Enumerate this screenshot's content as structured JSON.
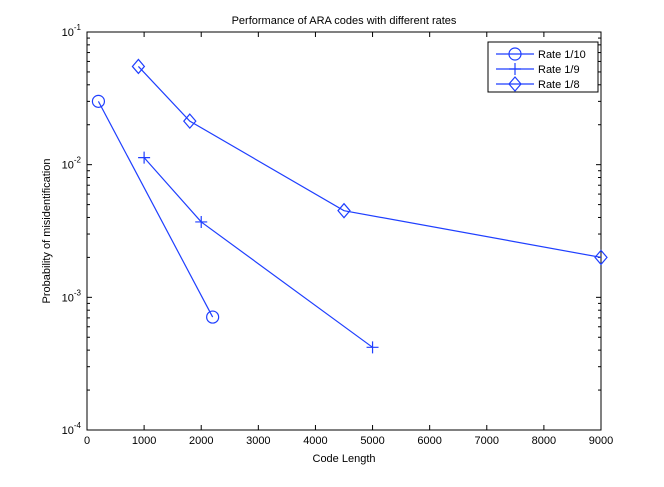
{
  "chart_data": {
    "type": "line",
    "title": "Performance of ARA codes with different rates",
    "xlabel": "Code Length",
    "ylabel": "Probability of misidentification",
    "xlim": [
      0,
      9000
    ],
    "ylim": [
      0.0001,
      0.1
    ],
    "yscale": "log",
    "grid": false,
    "legend_position": "top-right",
    "x_ticks": [
      "0",
      "1000",
      "2000",
      "3000",
      "4000",
      "5000",
      "6000",
      "7000",
      "8000",
      "9000"
    ],
    "y_ticks": [
      {
        "base": "10",
        "exp": "-4"
      },
      {
        "base": "10",
        "exp": "-3"
      },
      {
        "base": "10",
        "exp": "-2"
      },
      {
        "base": "10",
        "exp": "-1"
      }
    ],
    "color": "#1f3fff",
    "series": [
      {
        "name": "Rate 1/10",
        "marker": "circle",
        "x": [
          200,
          2200
        ],
        "y": [
          0.03,
          0.00071
        ]
      },
      {
        "name": "Rate 1/9",
        "marker": "plus",
        "x": [
          1000,
          2000,
          5000
        ],
        "y": [
          0.0113,
          0.0037,
          0.00042
        ]
      },
      {
        "name": "Rate 1/8",
        "marker": "diamond",
        "x": [
          900,
          1800,
          4500,
          9000
        ],
        "y": [
          0.055,
          0.0213,
          0.0045,
          0.002
        ]
      }
    ]
  }
}
